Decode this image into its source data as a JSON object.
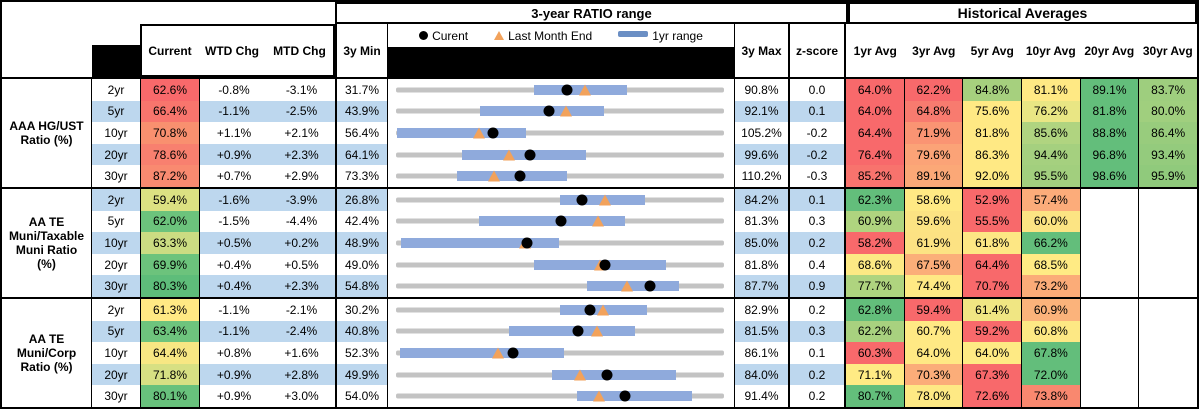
{
  "header": {
    "range_title": "3-year RATIO range",
    "hist_title": "Historical Averages",
    "col_current": "Current",
    "col_wtd": "WTD Chg",
    "col_mtd": "MTD Chg",
    "col_3ymin": "3y Min",
    "col_3ymax": "3y Max",
    "col_zscore": "z-score",
    "avg_cols": [
      "1yr Avg",
      "3yr Avg",
      "5yr Avg",
      "10yr Avg",
      "20yr Avg",
      "30yr Avg"
    ],
    "legend_current": "Curent",
    "legend_last_month": "Last Month End",
    "legend_range": "1yr range"
  },
  "colors": {
    "band_blue": "#BDD7EE",
    "bar_blue": "#8FAADC",
    "track_gray": "#C3C3C3",
    "triangle_orange": "#F2A25B",
    "dot_black": "#000000",
    "scale_red": "#F8696B",
    "scale_yellow": "#FFE984",
    "scale_green": "#63BE7B"
  },
  "groups": [
    {
      "label_lines": [
        "AAA HG/UST",
        "Ratio (%)"
      ],
      "rows": [
        {
          "tenor": "2yr",
          "current": "62.6%",
          "cc": "#F8696B",
          "wtd": "-0.8%",
          "mtd": "-3.1%",
          "min": "31.7%",
          "max": "90.8%",
          "z": "0.0",
          "bar": {
            "min": 31.7,
            "max": 90.8,
            "lo": 56.5,
            "hi": 73.4,
            "dot": 62.6,
            "tri": 65.7
          },
          "avgs": [
            {
              "t": "64.0%",
              "c": "#F8696B"
            },
            {
              "t": "62.2%",
              "c": "#F8696B"
            },
            {
              "t": "84.8%",
              "c": "#A6D07E"
            },
            {
              "t": "81.1%",
              "c": "#FFE984"
            },
            {
              "t": "89.1%",
              "c": "#63BE7B"
            },
            {
              "t": "83.7%",
              "c": "#9ECE7E"
            }
          ]
        },
        {
          "tenor": "5yr",
          "current": "66.4%",
          "cc": "#F8756D",
          "wtd": "-1.1%",
          "mtd": "-2.5%",
          "min": "43.9%",
          "max": "92.1%",
          "z": "0.1",
          "bar": {
            "min": 43.9,
            "max": 92.1,
            "lo": 56.2,
            "hi": 74.4,
            "dot": 66.4,
            "tri": 68.9
          },
          "avgs": [
            {
              "t": "64.0%",
              "c": "#F8696B"
            },
            {
              "t": "64.8%",
              "c": "#F87B6F"
            },
            {
              "t": "75.6%",
              "c": "#FFE984"
            },
            {
              "t": "76.2%",
              "c": "#E9E684"
            },
            {
              "t": "81.8%",
              "c": "#63BE7B"
            },
            {
              "t": "80.0%",
              "c": "#A0CF7E"
            }
          ]
        },
        {
          "tenor": "10yr",
          "current": "70.8%",
          "cc": "#F9906F",
          "wtd": "+1.1%",
          "mtd": "+2.1%",
          "min": "56.4%",
          "max": "105.2%",
          "z": "-0.2",
          "bar": {
            "min": 56.4,
            "max": 105.2,
            "lo": 56.6,
            "hi": 75.7,
            "dot": 70.8,
            "tri": 68.7
          },
          "avgs": [
            {
              "t": "64.4%",
              "c": "#F8696B"
            },
            {
              "t": "71.9%",
              "c": "#FA9473"
            },
            {
              "t": "81.8%",
              "c": "#FFE984"
            },
            {
              "t": "85.6%",
              "c": "#B0D480"
            },
            {
              "t": "88.8%",
              "c": "#63BE7B"
            },
            {
              "t": "86.4%",
              "c": "#98CC7D"
            }
          ]
        },
        {
          "tenor": "20yr",
          "current": "78.6%",
          "cc": "#F8806F",
          "wtd": "+0.9%",
          "mtd": "+2.3%",
          "min": "64.1%",
          "max": "99.6%",
          "z": "-0.2",
          "bar": {
            "min": 64.1,
            "max": 99.6,
            "lo": 71.2,
            "hi": 84.7,
            "dot": 78.6,
            "tri": 76.3
          },
          "avgs": [
            {
              "t": "76.4%",
              "c": "#F8696B"
            },
            {
              "t": "79.6%",
              "c": "#FBA377"
            },
            {
              "t": "86.3%",
              "c": "#FFE984"
            },
            {
              "t": "94.4%",
              "c": "#A5D07F"
            },
            {
              "t": "96.8%",
              "c": "#63BE7B"
            },
            {
              "t": "93.4%",
              "c": "#94CB7D"
            }
          ]
        },
        {
          "tenor": "30yr",
          "current": "87.2%",
          "cc": "#F98A70",
          "wtd": "+0.7%",
          "mtd": "+2.9%",
          "min": "73.3%",
          "max": "110.2%",
          "z": "-0.3",
          "bar": {
            "min": 73.3,
            "max": 110.2,
            "lo": 80.2,
            "hi": 92.5,
            "dot": 87.2,
            "tri": 84.3
          },
          "avgs": [
            {
              "t": "85.2%",
              "c": "#F8736D"
            },
            {
              "t": "89.1%",
              "c": "#FBA877"
            },
            {
              "t": "92.0%",
              "c": "#FFE984"
            },
            {
              "t": "95.5%",
              "c": "#A2CF7E"
            },
            {
              "t": "98.6%",
              "c": "#63BE7B"
            },
            {
              "t": "95.9%",
              "c": "#90CA7C"
            }
          ]
        }
      ]
    },
    {
      "label_lines": [
        "AA TE",
        "Muni/Taxable",
        "Muni Ratio",
        "(%)"
      ],
      "rows": [
        {
          "tenor": "2yr",
          "current": "59.4%",
          "cc": "#DCE182",
          "wtd": "-1.6%",
          "mtd": "-3.9%",
          "min": "26.8%",
          "max": "84.2%",
          "z": "0.1",
          "bar": {
            "min": 26.8,
            "max": 84.2,
            "lo": 55.5,
            "hi": 70.4,
            "dot": 59.4,
            "tri": 63.3
          },
          "avgs": [
            {
              "t": "62.3%",
              "c": "#63BE7B"
            },
            {
              "t": "58.6%",
              "c": "#FFE984"
            },
            {
              "t": "52.9%",
              "c": "#F8696B"
            },
            {
              "t": "57.4%",
              "c": "#FCAC7A"
            },
            {
              "t": "",
              "c": ""
            },
            {
              "t": "",
              "c": ""
            }
          ]
        },
        {
          "tenor": "5yr",
          "current": "62.0%",
          "cc": "#6CC37C",
          "wtd": "-1.5%",
          "mtd": "-4.4%",
          "min": "42.4%",
          "max": "81.3%",
          "z": "0.3",
          "bar": {
            "min": 42.4,
            "max": 81.3,
            "lo": 52.3,
            "hi": 69.6,
            "dot": 62.0,
            "tri": 66.4
          },
          "avgs": [
            {
              "t": "60.9%",
              "c": "#AFD47F"
            },
            {
              "t": "59.6%",
              "c": "#FCE383"
            },
            {
              "t": "55.5%",
              "c": "#F8696B"
            },
            {
              "t": "60.0%",
              "c": "#FCE483"
            },
            {
              "t": "",
              "c": ""
            },
            {
              "t": "",
              "c": ""
            }
          ]
        },
        {
          "tenor": "10yr",
          "current": "63.3%",
          "cc": "#CBDC82",
          "wtd": "+0.5%",
          "mtd": "+0.2%",
          "min": "48.9%",
          "max": "85.0%",
          "z": "0.2",
          "bar": {
            "min": 48.9,
            "max": 85.0,
            "lo": 49.5,
            "hi": 66.8,
            "dot": 63.3,
            "tri": 63.1
          },
          "avgs": [
            {
              "t": "58.2%",
              "c": "#F8696B"
            },
            {
              "t": "61.9%",
              "c": "#FCE283"
            },
            {
              "t": "61.8%",
              "c": "#FDE784"
            },
            {
              "t": "66.2%",
              "c": "#63BE7B"
            },
            {
              "t": "",
              "c": ""
            },
            {
              "t": "",
              "c": ""
            }
          ]
        },
        {
          "tenor": "20yr",
          "current": "69.9%",
          "cc": "#6CC37C",
          "wtd": "+0.4%",
          "mtd": "+0.5%",
          "min": "49.0%",
          "max": "81.8%",
          "z": "0.4",
          "bar": {
            "min": 49.0,
            "max": 81.8,
            "lo": 62.8,
            "hi": 76.0,
            "dot": 69.9,
            "tri": 69.4
          },
          "avgs": [
            {
              "t": "68.6%",
              "c": "#FDE984"
            },
            {
              "t": "67.5%",
              "c": "#FBAE79"
            },
            {
              "t": "64.4%",
              "c": "#F8696B"
            },
            {
              "t": "68.5%",
              "c": "#FFEB84"
            },
            {
              "t": "",
              "c": ""
            },
            {
              "t": "",
              "c": ""
            }
          ]
        },
        {
          "tenor": "30yr",
          "current": "80.3%",
          "cc": "#5EBD7A",
          "wtd": "+0.4%",
          "mtd": "+2.3%",
          "min": "54.8%",
          "max": "87.7%",
          "z": "0.9",
          "bar": {
            "min": 54.8,
            "max": 87.7,
            "lo": 74.0,
            "hi": 83.2,
            "dot": 80.3,
            "tri": 78.0
          },
          "avgs": [
            {
              "t": "77.7%",
              "c": "#AFD47F"
            },
            {
              "t": "74.4%",
              "c": "#FFE984"
            },
            {
              "t": "70.7%",
              "c": "#F8696B"
            },
            {
              "t": "73.2%",
              "c": "#FBAC78"
            },
            {
              "t": "",
              "c": ""
            },
            {
              "t": "",
              "c": ""
            }
          ]
        }
      ]
    },
    {
      "label_lines": [
        "AA TE",
        "Muni/Corp",
        "Ratio (%)"
      ],
      "rows": [
        {
          "tenor": "2yr",
          "current": "61.3%",
          "cc": "#FFE984",
          "wtd": "-1.1%",
          "mtd": "-2.1%",
          "min": "30.2%",
          "max": "82.9%",
          "z": "0.2",
          "bar": {
            "min": 30.2,
            "max": 82.9,
            "lo": 56.6,
            "hi": 70.6,
            "dot": 61.3,
            "tri": 63.4
          },
          "avgs": [
            {
              "t": "62.8%",
              "c": "#63BE7B"
            },
            {
              "t": "59.4%",
              "c": "#F8696B"
            },
            {
              "t": "61.4%",
              "c": "#F0E683"
            },
            {
              "t": "60.9%",
              "c": "#FBB37B"
            },
            {
              "t": "",
              "c": ""
            },
            {
              "t": "",
              "c": ""
            }
          ]
        },
        {
          "tenor": "5yr",
          "current": "63.4%",
          "cc": "#6EC47D",
          "wtd": "-1.1%",
          "mtd": "-2.4%",
          "min": "40.8%",
          "max": "81.5%",
          "z": "0.3",
          "bar": {
            "min": 40.8,
            "max": 81.5,
            "lo": 54.8,
            "hi": 70.4,
            "dot": 63.4,
            "tri": 65.8
          },
          "avgs": [
            {
              "t": "62.2%",
              "c": "#A8D17F"
            },
            {
              "t": "60.7%",
              "c": "#FFE984"
            },
            {
              "t": "59.2%",
              "c": "#F8696B"
            },
            {
              "t": "60.8%",
              "c": "#FDE884"
            },
            {
              "t": "",
              "c": ""
            },
            {
              "t": "",
              "c": ""
            }
          ]
        },
        {
          "tenor": "10yr",
          "current": "64.4%",
          "cc": "#F7E783",
          "wtd": "+0.8%",
          "mtd": "+1.6%",
          "min": "52.3%",
          "max": "86.1%",
          "z": "0.1",
          "bar": {
            "min": 52.3,
            "max": 86.1,
            "lo": 52.7,
            "hi": 69.6,
            "dot": 64.4,
            "tri": 62.8
          },
          "avgs": [
            {
              "t": "60.3%",
              "c": "#F8696B"
            },
            {
              "t": "64.0%",
              "c": "#FFE984"
            },
            {
              "t": "64.0%",
              "c": "#FEEA84"
            },
            {
              "t": "67.8%",
              "c": "#63BE7B"
            },
            {
              "t": "",
              "c": ""
            },
            {
              "t": "",
              "c": ""
            }
          ]
        },
        {
          "tenor": "20yr",
          "current": "71.8%",
          "cc": "#D7E083",
          "wtd": "+0.9%",
          "mtd": "+2.8%",
          "min": "49.9%",
          "max": "84.0%",
          "z": "0.2",
          "bar": {
            "min": 49.9,
            "max": 84.0,
            "lo": 66.1,
            "hi": 79.0,
            "dot": 71.8,
            "tri": 69.0
          },
          "avgs": [
            {
              "t": "71.1%",
              "c": "#FFEB84"
            },
            {
              "t": "70.3%",
              "c": "#FBAD79"
            },
            {
              "t": "67.3%",
              "c": "#F8696B"
            },
            {
              "t": "72.0%",
              "c": "#63BE7B"
            },
            {
              "t": "",
              "c": ""
            },
            {
              "t": "",
              "c": ""
            }
          ]
        },
        {
          "tenor": "30yr",
          "current": "80.1%",
          "cc": "#68C17C",
          "wtd": "+0.9%",
          "mtd": "+3.0%",
          "min": "54.0%",
          "max": "91.4%",
          "z": "0.2",
          "bar": {
            "min": 54.0,
            "max": 91.4,
            "lo": 74.6,
            "hi": 87.8,
            "dot": 80.1,
            "tri": 77.1
          },
          "avgs": [
            {
              "t": "80.7%",
              "c": "#63BE7B"
            },
            {
              "t": "78.0%",
              "c": "#FEE984"
            },
            {
              "t": "72.6%",
              "c": "#F8696B"
            },
            {
              "t": "73.8%",
              "c": "#F9886F"
            },
            {
              "t": "",
              "c": ""
            },
            {
              "t": "",
              "c": ""
            }
          ]
        }
      ]
    }
  ],
  "chart_data": {
    "type": "bullet-range",
    "title": "3-year RATIO range",
    "legend": [
      "Curent",
      "Last Month End",
      "1yr range"
    ],
    "axis_note": "each row scaled from its own 3y Min to 3y Max (ratio %)",
    "rows": [
      {
        "series": "AAA HG/UST 2yr",
        "min_3y": 31.7,
        "max_3y": 90.8,
        "range_1yr": [
          56.5,
          73.4
        ],
        "current": 62.6,
        "last_month_end": 65.7
      },
      {
        "series": "AAA HG/UST 5yr",
        "min_3y": 43.9,
        "max_3y": 92.1,
        "range_1yr": [
          56.2,
          74.4
        ],
        "current": 66.4,
        "last_month_end": 68.9
      },
      {
        "series": "AAA HG/UST 10yr",
        "min_3y": 56.4,
        "max_3y": 105.2,
        "range_1yr": [
          56.6,
          75.7
        ],
        "current": 70.8,
        "last_month_end": 68.7
      },
      {
        "series": "AAA HG/UST 20yr",
        "min_3y": 64.1,
        "max_3y": 99.6,
        "range_1yr": [
          71.2,
          84.7
        ],
        "current": 78.6,
        "last_month_end": 76.3
      },
      {
        "series": "AAA HG/UST 30yr",
        "min_3y": 73.3,
        "max_3y": 110.2,
        "range_1yr": [
          80.2,
          92.5
        ],
        "current": 87.2,
        "last_month_end": 84.3
      },
      {
        "series": "AA TE Muni/Taxable 2yr",
        "min_3y": 26.8,
        "max_3y": 84.2,
        "range_1yr": [
          55.5,
          70.4
        ],
        "current": 59.4,
        "last_month_end": 63.3
      },
      {
        "series": "AA TE Muni/Taxable 5yr",
        "min_3y": 42.4,
        "max_3y": 81.3,
        "range_1yr": [
          52.3,
          69.6
        ],
        "current": 62.0,
        "last_month_end": 66.4
      },
      {
        "series": "AA TE Muni/Taxable 10yr",
        "min_3y": 48.9,
        "max_3y": 85.0,
        "range_1yr": [
          49.5,
          66.8
        ],
        "current": 63.3,
        "last_month_end": 63.1
      },
      {
        "series": "AA TE Muni/Taxable 20yr",
        "min_3y": 49.0,
        "max_3y": 81.8,
        "range_1yr": [
          62.8,
          76.0
        ],
        "current": 69.9,
        "last_month_end": 69.4
      },
      {
        "series": "AA TE Muni/Taxable 30yr",
        "min_3y": 54.8,
        "max_3y": 87.7,
        "range_1yr": [
          74.0,
          83.2
        ],
        "current": 80.3,
        "last_month_end": 78.0
      },
      {
        "series": "AA TE Muni/Corp 2yr",
        "min_3y": 30.2,
        "max_3y": 82.9,
        "range_1yr": [
          56.6,
          70.6
        ],
        "current": 61.3,
        "last_month_end": 63.4
      },
      {
        "series": "AA TE Muni/Corp 5yr",
        "min_3y": 40.8,
        "max_3y": 81.5,
        "range_1yr": [
          54.8,
          70.4
        ],
        "current": 63.4,
        "last_month_end": 65.8
      },
      {
        "series": "AA TE Muni/Corp 10yr",
        "min_3y": 52.3,
        "max_3y": 86.1,
        "range_1yr": [
          52.7,
          69.6
        ],
        "current": 64.4,
        "last_month_end": 62.8
      },
      {
        "series": "AA TE Muni/Corp 20yr",
        "min_3y": 49.9,
        "max_3y": 84.0,
        "range_1yr": [
          66.1,
          79.0
        ],
        "current": 71.8,
        "last_month_end": 69.0
      },
      {
        "series": "AA TE Muni/Corp 30yr",
        "min_3y": 54.0,
        "max_3y": 91.4,
        "range_1yr": [
          74.6,
          87.8
        ],
        "current": 80.1,
        "last_month_end": 77.1
      }
    ]
  }
}
